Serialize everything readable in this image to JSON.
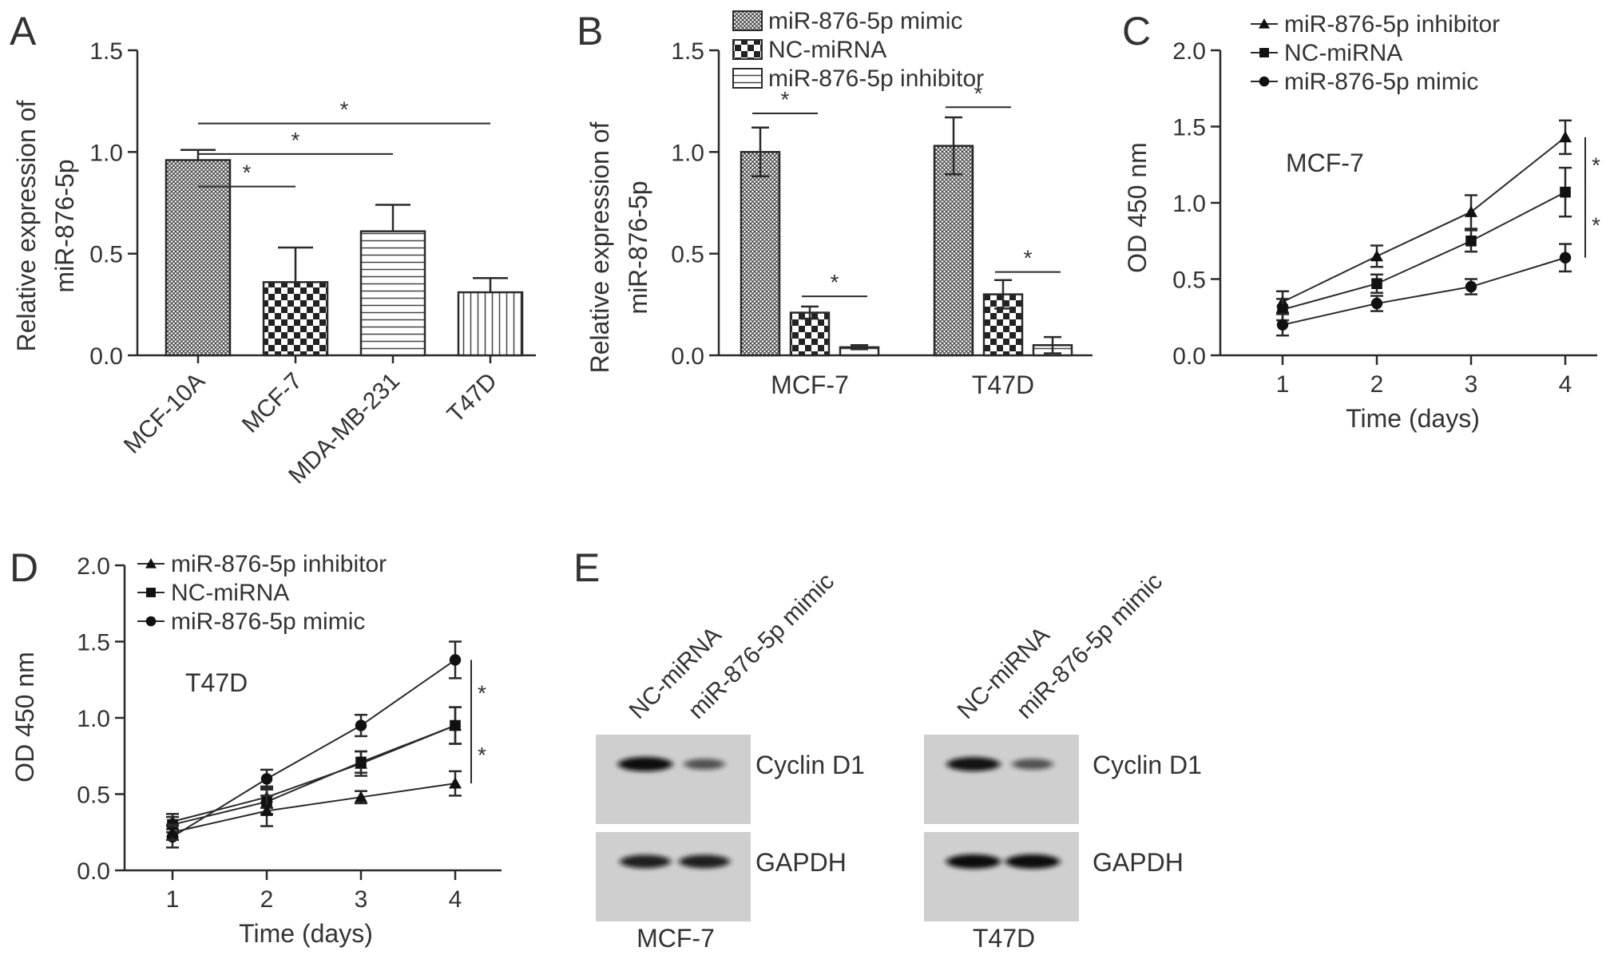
{
  "panels": {
    "A": {
      "letter": "A",
      "chart_data": {
        "type": "bar",
        "categories": [
          "MCF-10A",
          "MCF-7",
          "MDA-MB-231",
          "T47D"
        ],
        "values": [
          0.96,
          0.36,
          0.61,
          0.31
        ],
        "errors": [
          0.05,
          0.17,
          0.13,
          0.07
        ],
        "patterns": [
          "dense",
          "checker",
          "hstripe",
          "vstripe"
        ],
        "ylabel_line1": "Relative expression of",
        "ylabel_line2": "miR-876-5p",
        "ylim": [
          0,
          1.5
        ],
        "yticks": [
          "0.0",
          "0.5",
          "1.0",
          "1.5"
        ],
        "significance": [
          {
            "from": 0,
            "to": 1,
            "y": 0.83,
            "label": "*"
          },
          {
            "from": 0,
            "to": 2,
            "y": 0.99,
            "label": "*"
          },
          {
            "from": 0,
            "to": 3,
            "y": 1.14,
            "label": "*"
          }
        ]
      }
    },
    "B": {
      "letter": "B",
      "chart_data": {
        "type": "bar",
        "categories": [
          "MCF-7",
          "T47D"
        ],
        "series": [
          {
            "name": "miR-876-5p mimic",
            "pattern": "dense",
            "values": [
              1.0,
              1.03
            ],
            "errors": [
              0.12,
              0.14
            ]
          },
          {
            "name": "NC-miRNA",
            "pattern": "checker",
            "values": [
              0.21,
              0.3
            ],
            "errors": [
              0.03,
              0.07
            ]
          },
          {
            "name": "miR-876-5p inhibitor",
            "pattern": "hstripe",
            "values": [
              0.04,
              0.05
            ],
            "errors": [
              0.01,
              0.04
            ]
          }
        ],
        "ylabel_line1": "Relative expression of",
        "ylabel_line2": "miR-876-5p",
        "ylim": [
          0,
          1.5
        ],
        "yticks": [
          "0.0",
          "0.5",
          "1.0",
          "1.5"
        ],
        "significance": [
          {
            "group": 0,
            "from": 0,
            "to": 1,
            "y": 1.19,
            "label": "*"
          },
          {
            "group": 0,
            "from": 1,
            "to": 2,
            "y": 0.29,
            "label": "*"
          },
          {
            "group": 1,
            "from": 0,
            "to": 1,
            "y": 1.22,
            "label": "*"
          },
          {
            "group": 1,
            "from": 1,
            "to": 2,
            "y": 0.41,
            "label": "*"
          }
        ],
        "legend_position": "top"
      }
    },
    "C": {
      "letter": "C",
      "chart_data": {
        "type": "line",
        "x": [
          1,
          2,
          3,
          4
        ],
        "series": [
          {
            "name": "miR-876-5p inhibitor",
            "marker": "triangle",
            "values": [
              0.35,
              0.65,
              0.94,
              1.43
            ],
            "errors": [
              0.07,
              0.07,
              0.11,
              0.11
            ]
          },
          {
            "name": "NC-miRNA",
            "marker": "square",
            "values": [
              0.3,
              0.47,
              0.75,
              1.07
            ],
            "errors": [
              0.07,
              0.06,
              0.07,
              0.16
            ]
          },
          {
            "name": "miR-876-5p mimic",
            "marker": "circle",
            "values": [
              0.2,
              0.34,
              0.45,
              0.64
            ],
            "errors": [
              0.07,
              0.05,
              0.05,
              0.09
            ]
          }
        ],
        "annotation": "MCF-7",
        "xlabel": "Time (days)",
        "ylabel": "OD 450 nm",
        "xticks": [
          "1",
          "2",
          "3",
          "4"
        ],
        "ylim": [
          0,
          2.0
        ],
        "yticks": [
          "0.0",
          "0.5",
          "1.0",
          "1.5",
          "2.0"
        ],
        "significance": [
          {
            "top": 1.43,
            "bottom": 1.07,
            "label": "*"
          },
          {
            "top": 1.07,
            "bottom": 0.64,
            "label": "*"
          }
        ],
        "legend_position": "top-left"
      }
    },
    "D": {
      "letter": "D",
      "chart_data": {
        "type": "line",
        "x": [
          1,
          2,
          3,
          4
        ],
        "series": [
          {
            "name": "miR-876-5p inhibitor",
            "marker": "triangle",
            "values": [
              0.32,
              0.48,
              0.7,
              0.95
            ],
            "errors": [
              0.05,
              0.07,
              0.08,
              0.12
            ]
          },
          {
            "name": "NC-miRNA",
            "marker": "square",
            "values": [
              0.3,
              0.45,
              0.71,
              0.95
            ],
            "errors": [
              0.05,
              0.08,
              0.07,
              0.12
            ]
          },
          {
            "name": "miR-876-5p mimic",
            "marker": "circle",
            "values": [
              0.22,
              0.6,
              0.95,
              1.38
            ],
            "errors": [
              0.07,
              0.06,
              0.07,
              0.12
            ]
          }
        ],
        "extra_markers": [
          {
            "marker": "triangle",
            "values": [
              0.25,
              0.39,
              0.48,
              0.57
            ],
            "errors": [
              0.05,
              0.1,
              0.04,
              0.08
            ]
          }
        ],
        "annotation": "T47D",
        "xlabel": "Time (days)",
        "ylabel": "OD 450 nm",
        "xticks": [
          "1",
          "2",
          "3",
          "4"
        ],
        "ylim": [
          0,
          2.0
        ],
        "yticks": [
          "0.0",
          "0.5",
          "1.0",
          "1.5",
          "2.0"
        ],
        "significance": [
          {
            "top": 1.38,
            "bottom": 0.95,
            "label": "*"
          },
          {
            "top": 0.95,
            "bottom": 0.57,
            "label": "*"
          }
        ],
        "legend_position": "top-left"
      }
    },
    "E": {
      "letter": "E",
      "blots": [
        {
          "cell_line": "MCF-7",
          "lanes": [
            "NC-miRNA",
            "miR-876-5p mimic"
          ],
          "bands": [
            {
              "protein": "Cyclin D1",
              "intensity": [
                1.0,
                0.45
              ]
            },
            {
              "protein": "GAPDH",
              "intensity": [
                0.85,
                0.85
              ]
            }
          ]
        },
        {
          "cell_line": "T47D",
          "lanes": [
            "NC-miRNA",
            "miR-876-5p mimic"
          ],
          "bands": [
            {
              "protein": "Cyclin D1",
              "intensity": [
                0.95,
                0.45
              ]
            },
            {
              "protein": "GAPDH",
              "intensity": [
                1.0,
                1.0
              ]
            }
          ]
        }
      ]
    }
  }
}
